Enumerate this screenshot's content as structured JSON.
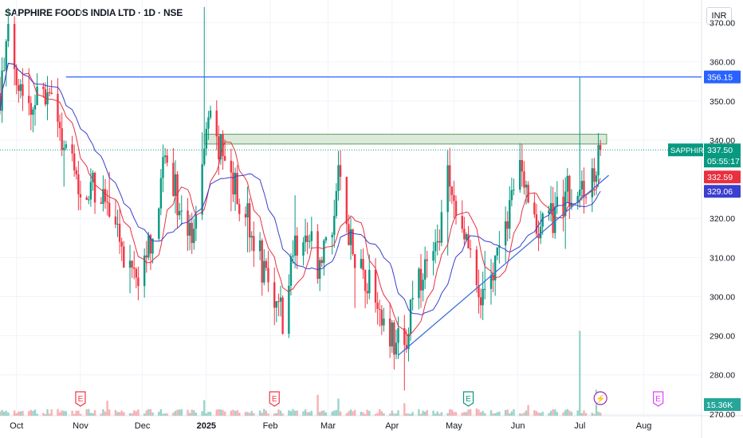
{
  "header": {
    "title": "SAPPHIRE FOODS INDIA LTD · 1D · NSE",
    "currency": "INR"
  },
  "colors": {
    "up": "#089981",
    "down": "#f23645",
    "ma_fast": "#e8303f",
    "ma_slow": "#3b3fcf",
    "resistance_line": "#2962ff",
    "trendline": "#3d6fe0",
    "zone_fill": "#cfe3cf",
    "zone_border": "#5aa05a"
  },
  "chart_data": {
    "type": "candlestick",
    "title": "SAPPHIRE FOODS INDIA LTD · 1D · NSE",
    "ylim": [
      272,
      375
    ],
    "grid": true,
    "y_ticks": [
      "370.00",
      "360.00",
      "350.00",
      "340.00",
      "320.00",
      "310.00",
      "300.00",
      "290.00",
      "280.00",
      "270.00"
    ],
    "x_ticks": [
      "Oct",
      "Nov",
      "Dec",
      "2025",
      "Feb",
      "Mar",
      "Apr",
      "May",
      "Jun",
      "Jul",
      "Aug"
    ],
    "price_labels": [
      {
        "text": "356.15",
        "value": 356.15,
        "kind": "line"
      },
      {
        "text": "SAPPHIRE",
        "value": 337.5,
        "kind": "symbol"
      },
      {
        "text": "337.50",
        "value": 337.5,
        "kind": "last"
      },
      {
        "text": "05:55:17",
        "value": 337.5,
        "kind": "countdown"
      },
      {
        "text": "332.59",
        "value": 332.59,
        "kind": "ma_fast"
      },
      {
        "text": "329.06",
        "value": 329.06,
        "kind": "ma_slow"
      }
    ],
    "volume_label": "15.36K",
    "horizontal_line": 356.15,
    "last_price": 337.5,
    "resistance_zone": {
      "low": 339.0,
      "high": 341.5,
      "start": "2024-12-31",
      "end": "2025-07-14"
    },
    "trendline": {
      "start": [
        "2025-04-04",
        285.0
      ],
      "end": [
        "2025-07-15",
        331.0
      ]
    },
    "events": [
      {
        "label": "E",
        "date": "2024-11-01",
        "color": "#f23645"
      },
      {
        "label": "E",
        "date": "2025-02-03",
        "color": "#f23645"
      },
      {
        "label": "E",
        "date": "2025-05-08",
        "color": "#089981"
      },
      {
        "label": "⚡",
        "date": "2025-07-11",
        "color": "#9c27b0"
      },
      {
        "label": "E",
        "date": "2025-08-08",
        "color": "#e040fb"
      }
    ],
    "x_start": "2024-09-23",
    "x_end": "2025-08-29",
    "series_waypoints": [
      [
        "2024-09-23",
        352
      ],
      [
        "2024-09-27",
        366
      ],
      [
        "2024-10-01",
        358
      ],
      [
        "2024-10-08",
        348
      ],
      [
        "2024-10-14",
        352
      ],
      [
        "2024-10-18",
        350
      ],
      [
        "2024-10-24",
        336
      ],
      [
        "2024-10-31",
        330
      ],
      [
        "2024-11-08",
        327
      ],
      [
        "2024-11-14",
        322
      ],
      [
        "2024-11-21",
        312
      ],
      [
        "2024-11-28",
        304
      ],
      [
        "2024-12-03",
        310
      ],
      [
        "2024-12-09",
        325
      ],
      [
        "2024-12-13",
        338
      ],
      [
        "2024-12-18",
        325
      ],
      [
        "2024-12-24",
        316
      ],
      [
        "2024-12-28",
        324
      ],
      [
        "2025-01-02",
        346
      ],
      [
        "2025-01-06",
        340
      ],
      [
        "2025-01-10",
        334
      ],
      [
        "2025-01-16",
        326
      ],
      [
        "2025-01-23",
        318
      ],
      [
        "2025-01-28",
        308
      ],
      [
        "2025-02-03",
        300
      ],
      [
        "2025-02-07",
        295
      ],
      [
        "2025-02-12",
        310
      ],
      [
        "2025-02-18",
        320
      ],
      [
        "2025-02-24",
        308
      ],
      [
        "2025-03-01",
        312
      ],
      [
        "2025-03-06",
        332
      ],
      [
        "2025-03-10",
        318
      ],
      [
        "2025-03-14",
        310
      ],
      [
        "2025-03-20",
        305
      ],
      [
        "2025-03-26",
        298
      ],
      [
        "2025-04-01",
        290
      ],
      [
        "2025-04-07",
        286
      ],
      [
        "2025-04-11",
        300
      ],
      [
        "2025-04-17",
        306
      ],
      [
        "2025-04-22",
        312
      ],
      [
        "2025-04-28",
        330
      ],
      [
        "2025-05-02",
        322
      ],
      [
        "2025-05-08",
        312
      ],
      [
        "2025-05-14",
        300
      ],
      [
        "2025-05-20",
        308
      ],
      [
        "2025-05-26",
        318
      ],
      [
        "2025-06-02",
        332
      ],
      [
        "2025-06-06",
        325
      ],
      [
        "2025-06-12",
        318
      ],
      [
        "2025-06-18",
        320
      ],
      [
        "2025-06-24",
        326
      ],
      [
        "2025-06-30",
        330
      ],
      [
        "2025-07-04",
        328
      ],
      [
        "2025-07-08",
        332
      ],
      [
        "2025-07-11",
        337.5
      ]
    ]
  }
}
